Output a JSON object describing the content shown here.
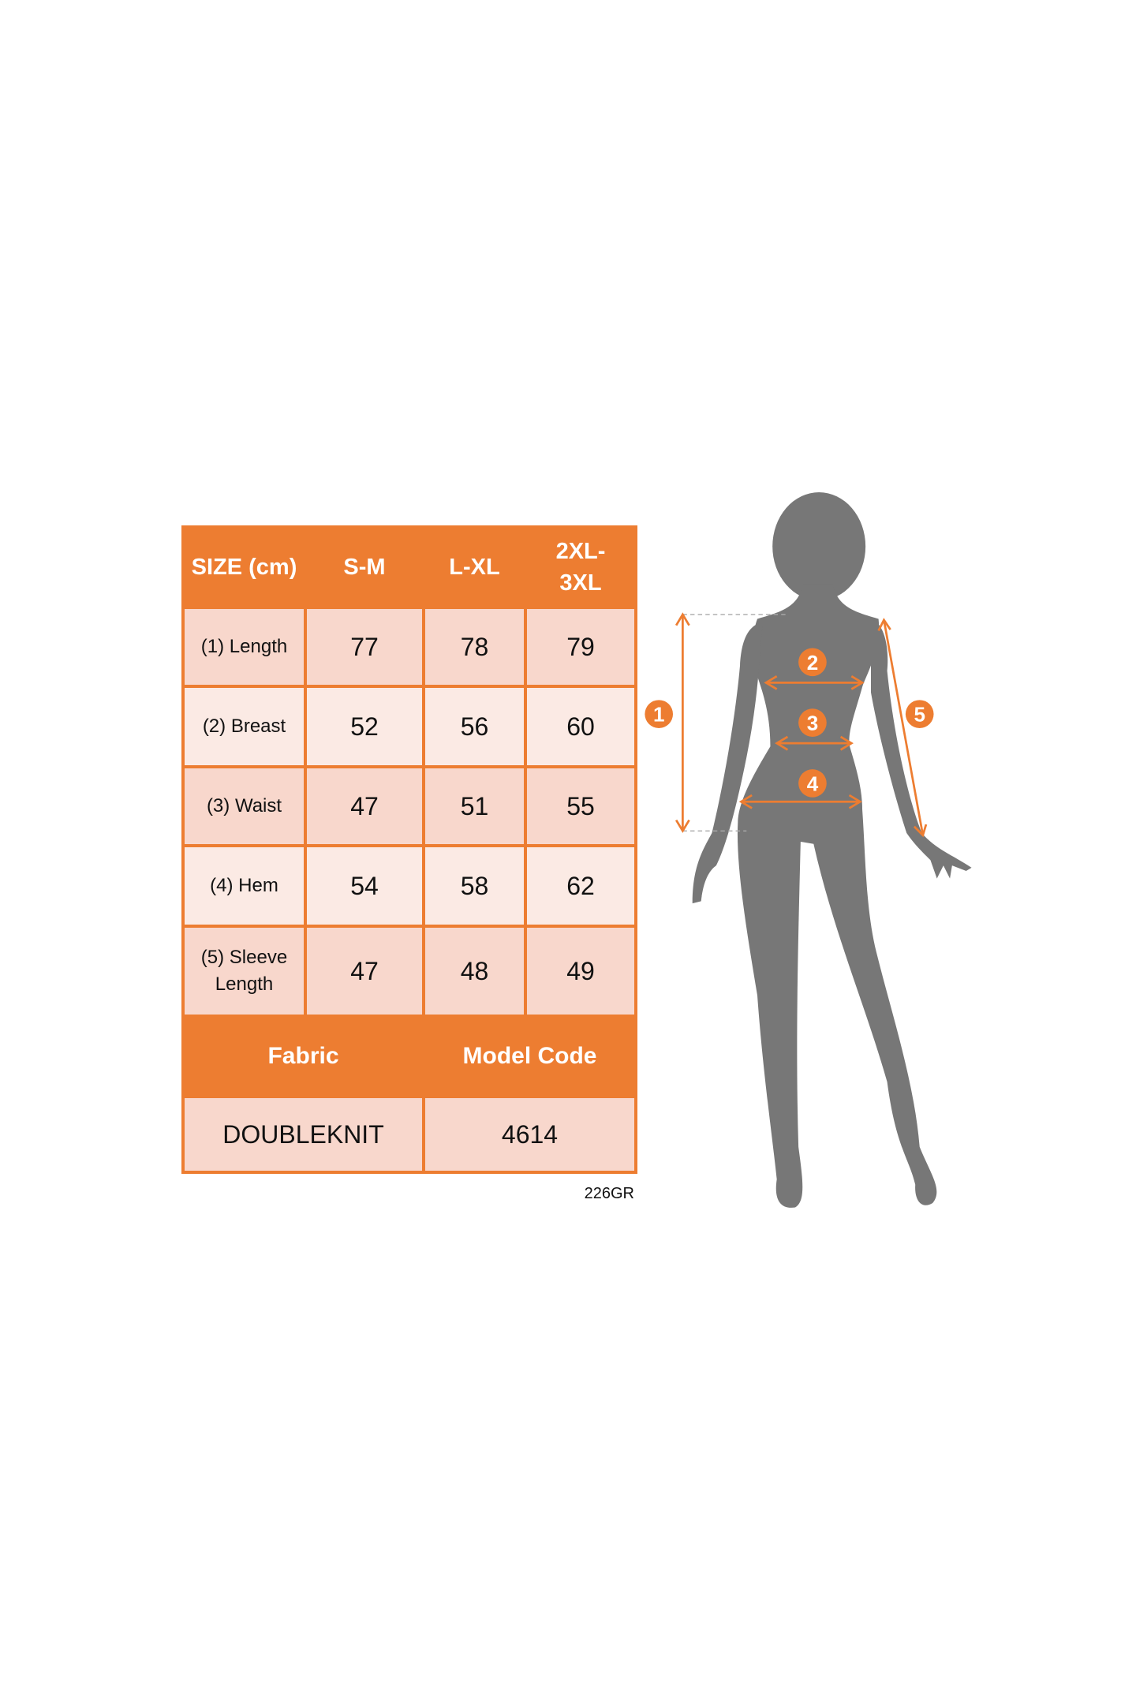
{
  "colors": {
    "accent": "#ED7D31",
    "cell_dark": "#F8D7CC",
    "cell_light": "#FBEAE4",
    "silhouette": "#777777"
  },
  "table": {
    "headers": [
      "SIZE (cm)",
      "S-M",
      "L-XL",
      "2XL-3XL"
    ],
    "rows": [
      {
        "label": "(1) Length",
        "values": [
          "77",
          "78",
          "79"
        ]
      },
      {
        "label": "(2) Breast",
        "values": [
          "52",
          "56",
          "60"
        ]
      },
      {
        "label": "(3) Waist",
        "values": [
          "47",
          "51",
          "55"
        ]
      },
      {
        "label": "(4) Hem",
        "values": [
          "54",
          "58",
          "62"
        ]
      },
      {
        "label": "(5) Sleeve Length",
        "values": [
          "47",
          "48",
          "49"
        ]
      }
    ],
    "footer_headers": [
      "Fabric",
      "Model Code"
    ],
    "footer_values": [
      "DOUBLEKNIT",
      "4614"
    ]
  },
  "code": "226GR",
  "figure": {
    "markers": [
      "1",
      "2",
      "3",
      "4",
      "5"
    ]
  }
}
